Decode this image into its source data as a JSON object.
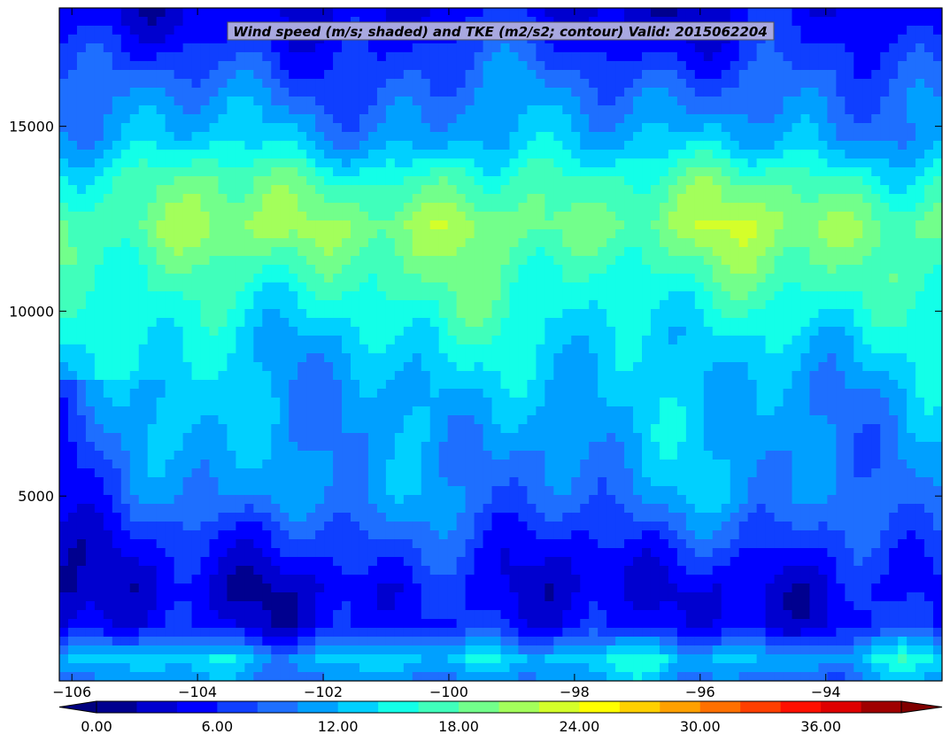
{
  "chart_data": {
    "type": "heatmap",
    "title": "Wind speed (m/s; shaded) and TKE (m2/s2; contour) Valid: 2015062204",
    "xlabel": "",
    "ylabel": "",
    "xlim": [
      -106.2,
      -92.15
    ],
    "ylim": [
      0,
      18200
    ],
    "x_ticks": [
      -106,
      -104,
      -102,
      -100,
      -98,
      -96,
      -94
    ],
    "x_tick_labels": [
      "−106",
      "−104",
      "−102",
      "−100",
      "−98",
      "−96",
      "−94"
    ],
    "y_ticks": [
      5000,
      10000,
      15000
    ],
    "y_tick_labels": [
      "5000",
      "10000",
      "15000"
    ],
    "colorbar": {
      "levels": [
        0,
        2,
        4,
        6,
        8,
        10,
        12,
        14,
        16,
        18,
        20,
        22,
        24,
        26,
        28,
        30,
        32,
        34,
        36,
        38,
        40
      ],
      "tick_values": [
        0,
        6,
        12,
        18,
        24,
        30,
        36
      ],
      "tick_labels": [
        "0.00",
        "6.00",
        "12.00",
        "18.00",
        "24.00",
        "30.00",
        "36.00"
      ],
      "extend": "both",
      "colors": [
        "#00008f",
        "#0000cf",
        "#0000ff",
        "#0f3fff",
        "#1e6fff",
        "#00a0ff",
        "#00d0ff",
        "#13ffe8",
        "#40ffbb",
        "#72ff8b",
        "#a3ff5b",
        "#d4ff2a",
        "#ffff00",
        "#ffd000",
        "#ffa000",
        "#ff7000",
        "#ff3f00",
        "#ff0f00",
        "#df0000",
        "#9f0000"
      ],
      "under_color": "#00007f",
      "over_color": "#800000"
    },
    "vertical_profile": [
      {
        "z": 0,
        "speed": 10
      },
      {
        "z": 600,
        "speed": 13
      },
      {
        "z": 1500,
        "speed": 5
      },
      {
        "z": 2500,
        "speed": 4
      },
      {
        "z": 3500,
        "speed": 6
      },
      {
        "z": 5000,
        "speed": 10
      },
      {
        "z": 6500,
        "speed": 11
      },
      {
        "z": 8000,
        "speed": 12
      },
      {
        "z": 9500,
        "speed": 14
      },
      {
        "z": 11000,
        "speed": 17
      },
      {
        "z": 12300,
        "speed": 20
      },
      {
        "z": 13500,
        "speed": 17
      },
      {
        "z": 14600,
        "speed": 12
      },
      {
        "z": 16000,
        "speed": 9
      },
      {
        "z": 17200,
        "speed": 6
      },
      {
        "z": 18200,
        "speed": 4
      }
    ]
  }
}
